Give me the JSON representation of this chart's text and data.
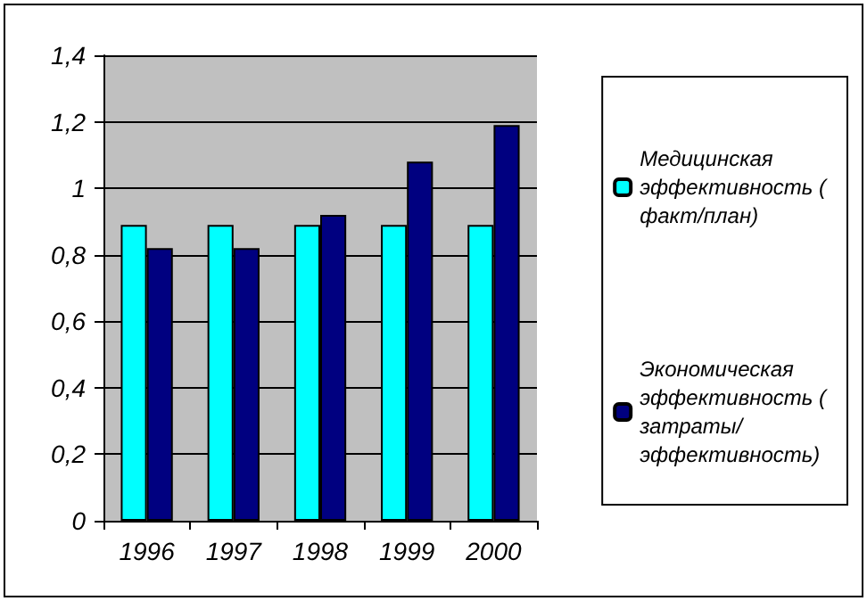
{
  "chart_data": {
    "type": "bar",
    "categories": [
      "1996",
      "1997",
      "1998",
      "1999",
      "2000"
    ],
    "series": [
      {
        "name": "Медицинская эффективность ( факт/план)",
        "color": "#00ffff",
        "values": [
          0.89,
          0.89,
          0.89,
          0.89,
          0.89
        ]
      },
      {
        "name": "Экономическая эффективность ( затраты/ эффективность)",
        "color": "#000080",
        "values": [
          0.82,
          0.82,
          0.92,
          1.08,
          1.19
        ]
      }
    ],
    "ylim": [
      0,
      1.4
    ],
    "yticks": [
      0,
      {
        "value": 0.2,
        "label": "0,2"
      },
      {
        "value": 0.4,
        "label": "0,4"
      },
      {
        "value": 0.6,
        "label": "0,6"
      },
      {
        "value": 0.8,
        "label": "0,8"
      },
      1,
      {
        "value": 1.2,
        "label": "1,2"
      },
      {
        "value": 1.4,
        "label": "1,4"
      }
    ],
    "grid": "y",
    "legend": "right"
  }
}
